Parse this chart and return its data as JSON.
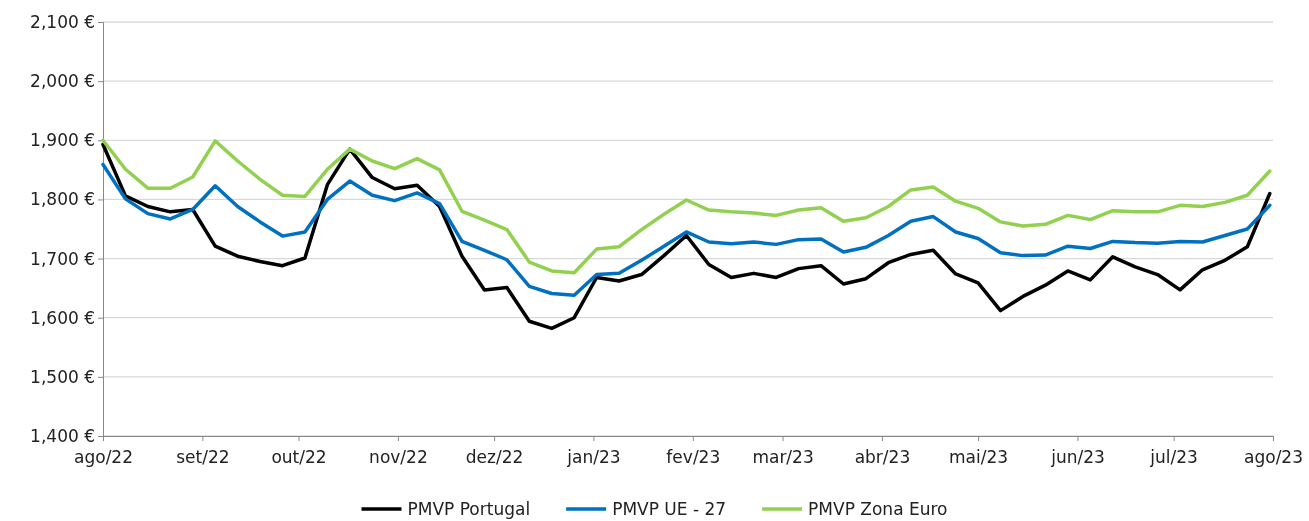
{
  "chart_data": {
    "type": "line",
    "x": [
      "2022-08-01",
      "2022-08-08",
      "2022-08-15",
      "2022-08-22",
      "2022-08-29",
      "2022-09-05",
      "2022-09-12",
      "2022-09-19",
      "2022-09-26",
      "2022-10-03",
      "2022-10-10",
      "2022-10-17",
      "2022-10-24",
      "2022-10-31",
      "2022-11-07",
      "2022-11-14",
      "2022-11-21",
      "2022-11-28",
      "2022-12-05",
      "2022-12-12",
      "2022-12-19",
      "2022-12-26",
      "2023-01-02",
      "2023-01-09",
      "2023-01-16",
      "2023-01-23",
      "2023-01-30",
      "2023-02-06",
      "2023-02-13",
      "2023-02-20",
      "2023-02-27",
      "2023-03-06",
      "2023-03-13",
      "2023-03-20",
      "2023-03-27",
      "2023-04-03",
      "2023-04-10",
      "2023-04-17",
      "2023-04-24",
      "2023-05-01",
      "2023-05-08",
      "2023-05-15",
      "2023-05-22",
      "2023-05-29",
      "2023-06-05",
      "2023-06-12",
      "2023-06-19",
      "2023-06-26",
      "2023-07-03",
      "2023-07-10",
      "2023-07-17",
      "2023-07-24",
      "2023-07-31"
    ],
    "series": [
      {
        "name": "PMVP Portugal",
        "color": "#000000",
        "values": [
          1893,
          1806,
          1788,
          1779,
          1783,
          1721,
          1704,
          1695,
          1688,
          1701,
          1825,
          1885,
          1837,
          1818,
          1824,
          1788,
          1704,
          1647,
          1651,
          1594,
          1582,
          1600,
          1668,
          1662,
          1673,
          1705,
          1739,
          1690,
          1668,
          1675,
          1668,
          1683,
          1688,
          1657,
          1666,
          1693,
          1707,
          1714,
          1674,
          1659,
          1612,
          1636,
          1655,
          1679,
          1664,
          1703,
          1686,
          1673,
          1647,
          1681,
          1697,
          1720,
          1810
        ]
      },
      {
        "name": "PMVP UE - 27",
        "color": "#0070c0",
        "values": [
          1859,
          1801,
          1776,
          1767,
          1783,
          1823,
          1788,
          1762,
          1738,
          1745,
          1800,
          1831,
          1807,
          1798,
          1811,
          1793,
          1729,
          1714,
          1698,
          1653,
          1641,
          1638,
          1673,
          1675,
          1697,
          1721,
          1745,
          1728,
          1725,
          1728,
          1724,
          1732,
          1733,
          1711,
          1719,
          1739,
          1763,
          1771,
          1745,
          1734,
          1710,
          1705,
          1706,
          1721,
          1717,
          1729,
          1727,
          1726,
          1729,
          1728,
          1739,
          1750,
          1790
        ]
      },
      {
        "name": "PMVP Zona Euro",
        "color": "#92d050",
        "values": [
          1900,
          1851,
          1819,
          1819,
          1838,
          1899,
          1865,
          1834,
          1807,
          1805,
          1851,
          1885,
          1865,
          1852,
          1869,
          1850,
          1780,
          1765,
          1749,
          1694,
          1679,
          1676,
          1716,
          1720,
          1749,
          1775,
          1799,
          1782,
          1779,
          1777,
          1773,
          1782,
          1786,
          1763,
          1769,
          1788,
          1816,
          1821,
          1797,
          1785,
          1762,
          1755,
          1758,
          1773,
          1766,
          1781,
          1779,
          1779,
          1790,
          1788,
          1795,
          1807,
          1848
        ]
      }
    ],
    "xlim": [
      "2022-08-01",
      "2023-08-01"
    ],
    "xticks": [
      {
        "value": "2022-08-01",
        "label": "ago/22"
      },
      {
        "value": "2022-09-01",
        "label": "set/22"
      },
      {
        "value": "2022-10-01",
        "label": "out/22"
      },
      {
        "value": "2022-11-01",
        "label": "nov/22"
      },
      {
        "value": "2022-12-01",
        "label": "dez/22"
      },
      {
        "value": "2023-01-01",
        "label": "jan/23"
      },
      {
        "value": "2023-02-01",
        "label": "fev/23"
      },
      {
        "value": "2023-03-01",
        "label": "mar/23"
      },
      {
        "value": "2023-04-01",
        "label": "abr/23"
      },
      {
        "value": "2023-05-01",
        "label": "mai/23"
      },
      {
        "value": "2023-06-01",
        "label": "jun/23"
      },
      {
        "value": "2023-07-01",
        "label": "jul/23"
      },
      {
        "value": "2023-08-01",
        "label": "ago/23"
      }
    ],
    "ylim": [
      1400,
      2100
    ],
    "yticks": [
      {
        "value": 1400,
        "label": "1,400 €"
      },
      {
        "value": 1500,
        "label": "1,500 €"
      },
      {
        "value": 1600,
        "label": "1,600 €"
      },
      {
        "value": 1700,
        "label": "1,700 €"
      },
      {
        "value": 1800,
        "label": "1,800 €"
      },
      {
        "value": 1900,
        "label": "1,900 €"
      },
      {
        "value": 2000,
        "label": "2,000 €"
      },
      {
        "value": 2100,
        "label": "2,100 €"
      }
    ],
    "grid": "y",
    "legend": "bottom",
    "marker": "none",
    "line_style": "solid"
  }
}
